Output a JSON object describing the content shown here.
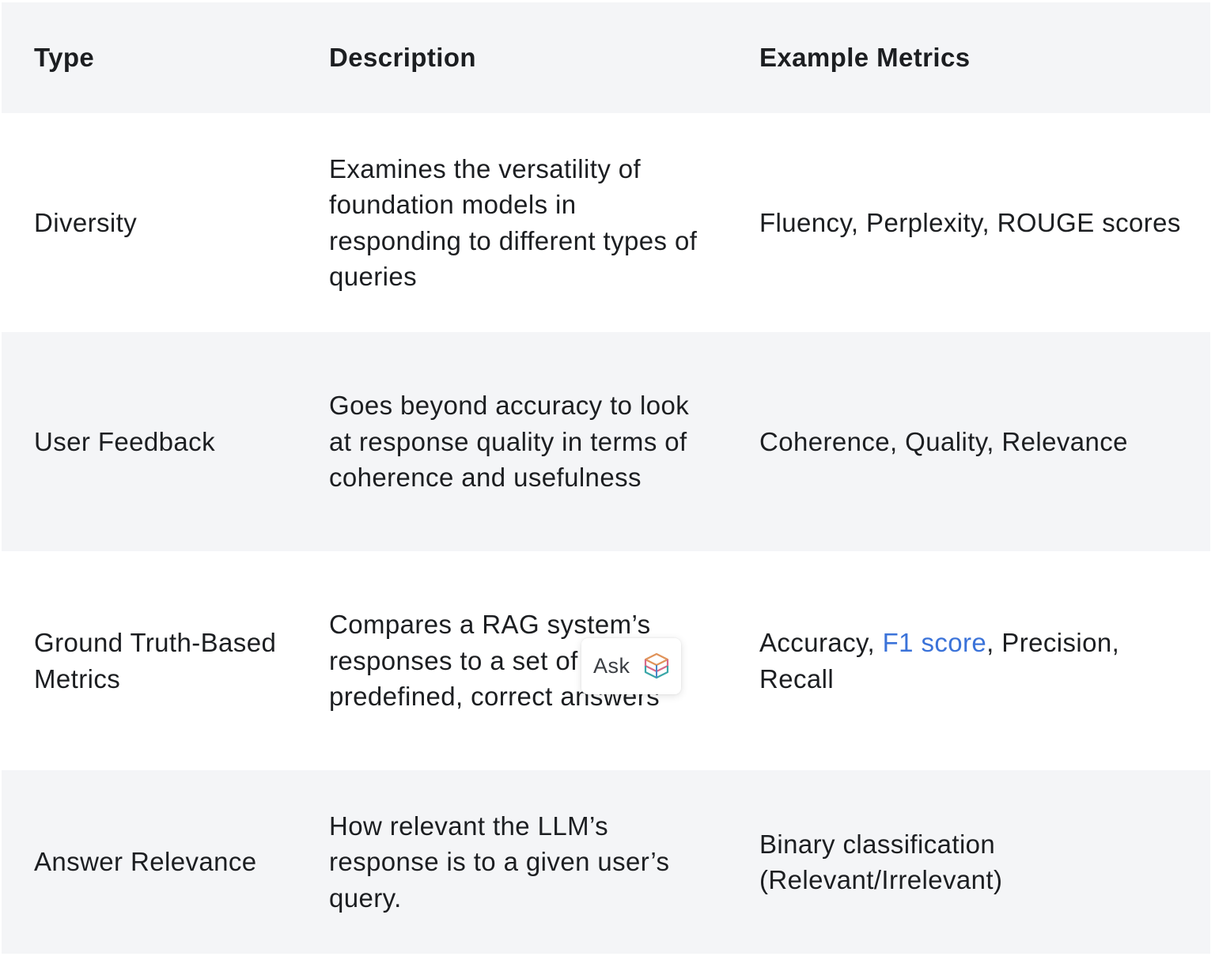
{
  "table": {
    "headers": {
      "type": "Type",
      "description": "Description",
      "metrics": "Example Metrics"
    },
    "rows": [
      {
        "type": "Diversity",
        "description": "Examines the versatility of foundation models in responding to different types of queries",
        "metrics": "Fluency, Perplexity, ROUGE scores"
      },
      {
        "type": "User Feedback",
        "description": "Goes beyond accuracy to look at response quality in terms of coherence and usefulness",
        "metrics": "Coherence, Quality, Relevance"
      },
      {
        "type": "Ground Truth-Based Metrics",
        "description": "Compares a RAG system’s responses to a set of predefined, correct answers",
        "metrics_before_link": "Accuracy, ",
        "metrics_link": "F1 score",
        "metrics_after_link": ", Precision, Recall"
      },
      {
        "type": "Answer Relevance",
        "description": "How relevant the LLM’s response is to a given user’s query.",
        "metrics": "Binary classification (Relevant/Irrelevant)"
      }
    ]
  },
  "ask_popup": {
    "label": "Ask",
    "icon": "stacked-layers-logo-icon"
  },
  "colors": {
    "header_background": "#f4f5f7",
    "stripe_background": "#f4f5f7",
    "link": "#3b73d9",
    "text": "#1c1e21"
  }
}
